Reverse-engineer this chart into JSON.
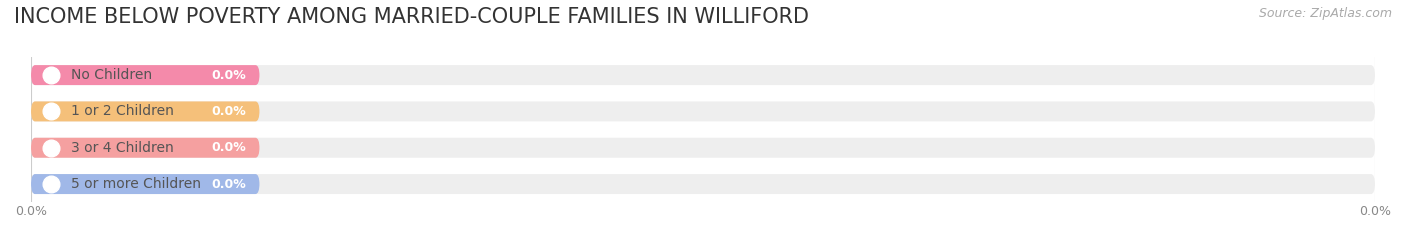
{
  "title": "INCOME BELOW POVERTY AMONG MARRIED-COUPLE FAMILIES IN WILLIFORD",
  "source": "Source: ZipAtlas.com",
  "categories": [
    "No Children",
    "1 or 2 Children",
    "3 or 4 Children",
    "5 or more Children"
  ],
  "values": [
    0.0,
    0.0,
    0.0,
    0.0
  ],
  "bar_colors": [
    "#f48aaa",
    "#f5c07a",
    "#f5a0a0",
    "#a0b8e8"
  ],
  "bar_bg_color": "#eeeeee",
  "dot_colors": [
    "#f48aaa",
    "#f5c07a",
    "#f5a0a0",
    "#a0b8e8"
  ],
  "label_color": "#555555",
  "value_label_color": "#ffffff",
  "title_color": "#333333",
  "source_color": "#aaaaaa",
  "background_color": "#ffffff",
  "xlim": [
    0,
    100
  ],
  "bar_height": 0.55,
  "title_fontsize": 15,
  "label_fontsize": 10,
  "value_fontsize": 9,
  "source_fontsize": 9
}
